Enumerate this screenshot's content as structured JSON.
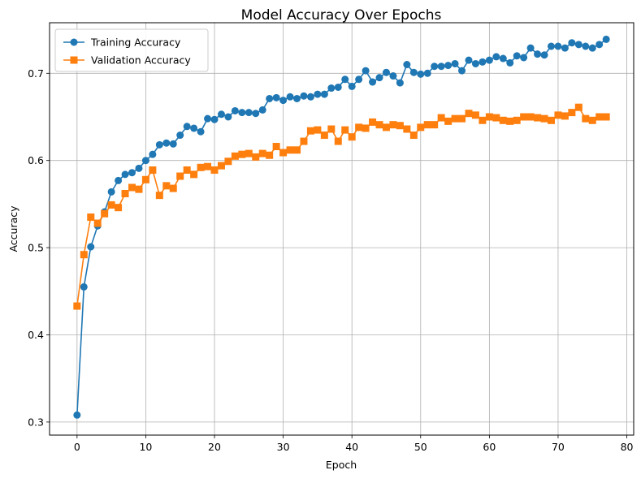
{
  "chart_data": {
    "type": "line",
    "title": "Model Accuracy Over Epochs",
    "xlabel": "Epoch",
    "ylabel": "Accuracy",
    "xlim": [
      -4,
      81
    ],
    "ylim": [
      0.285,
      0.758
    ],
    "xticks": [
      0,
      10,
      20,
      30,
      40,
      50,
      60,
      70,
      80
    ],
    "yticks": [
      0.3,
      0.4,
      0.5,
      0.6,
      0.7
    ],
    "ytick_labels": [
      "0.3",
      "0.4",
      "0.5",
      "0.6",
      "0.7"
    ],
    "grid": true,
    "legend_position": "top-left",
    "x": [
      0,
      1,
      2,
      3,
      4,
      5,
      6,
      7,
      8,
      9,
      10,
      11,
      12,
      13,
      14,
      15,
      16,
      17,
      18,
      19,
      20,
      21,
      22,
      23,
      24,
      25,
      26,
      27,
      28,
      29,
      30,
      31,
      32,
      33,
      34,
      35,
      36,
      37,
      38,
      39,
      40,
      41,
      42,
      43,
      44,
      45,
      46,
      47,
      48,
      49,
      50,
      51,
      52,
      53,
      54,
      55,
      56,
      57,
      58,
      59,
      60,
      61,
      62,
      63,
      64,
      65,
      66,
      67,
      68,
      69,
      70,
      71,
      72,
      73,
      74,
      75,
      76,
      77
    ],
    "series": [
      {
        "name": "Training Accuracy",
        "color": "#1f77b4",
        "marker": "circle",
        "values": [
          0.308,
          0.455,
          0.501,
          0.525,
          0.541,
          0.564,
          0.577,
          0.584,
          0.586,
          0.591,
          0.6,
          0.607,
          0.618,
          0.62,
          0.619,
          0.629,
          0.639,
          0.637,
          0.633,
          0.648,
          0.647,
          0.653,
          0.65,
          0.657,
          0.655,
          0.655,
          0.654,
          0.658,
          0.671,
          0.672,
          0.669,
          0.673,
          0.671,
          0.674,
          0.673,
          0.676,
          0.676,
          0.683,
          0.684,
          0.693,
          0.685,
          0.693,
          0.703,
          0.69,
          0.695,
          0.701,
          0.697,
          0.689,
          0.71,
          0.701,
          0.699,
          0.7,
          0.708,
          0.708,
          0.709,
          0.711,
          0.703,
          0.715,
          0.711,
          0.713,
          0.715,
          0.719,
          0.717,
          0.712,
          0.72,
          0.718,
          0.729,
          0.722,
          0.721,
          0.731,
          0.731,
          0.729,
          0.735,
          0.733,
          0.731,
          0.729,
          0.733,
          0.739
        ]
      },
      {
        "name": "Validation Accuracy",
        "color": "#ff7f0e",
        "marker": "square",
        "values": [
          0.433,
          0.492,
          0.535,
          0.528,
          0.539,
          0.549,
          0.546,
          0.562,
          0.569,
          0.567,
          0.578,
          0.589,
          0.56,
          0.571,
          0.568,
          0.582,
          0.589,
          0.584,
          0.592,
          0.593,
          0.589,
          0.594,
          0.599,
          0.605,
          0.607,
          0.608,
          0.604,
          0.608,
          0.606,
          0.616,
          0.609,
          0.612,
          0.612,
          0.622,
          0.634,
          0.635,
          0.629,
          0.636,
          0.622,
          0.635,
          0.627,
          0.638,
          0.637,
          0.644,
          0.641,
          0.638,
          0.641,
          0.64,
          0.636,
          0.629,
          0.638,
          0.641,
          0.641,
          0.649,
          0.645,
          0.648,
          0.648,
          0.654,
          0.652,
          0.646,
          0.65,
          0.649,
          0.646,
          0.645,
          0.646,
          0.65,
          0.65,
          0.649,
          0.648,
          0.646,
          0.652,
          0.651,
          0.655,
          0.661,
          0.648,
          0.646,
          0.65,
          0.65
        ]
      }
    ]
  }
}
